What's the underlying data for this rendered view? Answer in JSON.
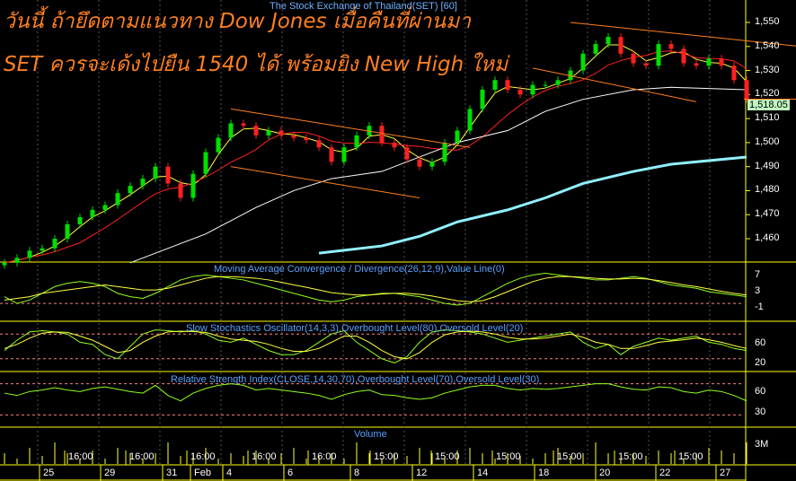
{
  "headline": {
    "line1": "วันนี้ ถ้ายึดตามแนวทาง Dow Jones เมื่อคืนที่ผ่านมา",
    "line2": "SET ควรจะเด้งไปยืน 1540 ได้ พร้อมยิง New High ใหม่"
  },
  "source_label": "The Stock Exchange of Thailand(SET) [60]",
  "colors": {
    "up": "#00e000",
    "down": "#ff2020",
    "ma_short": "#ffff40",
    "ma_mid": "#ff2020",
    "ma_long": "#ffffff",
    "ma_longest": "#90f0ff",
    "trendline": "#ff7f1f",
    "axis": "#ffff00",
    "label": "#5aa0ff"
  },
  "chart_data": [
    {
      "type": "candlestick",
      "title": "The Stock Exchange of Thailand(SET) [60]",
      "yticks": [
        "1,550",
        "1,540",
        "1,530",
        "1,520",
        "1,510",
        "1,500",
        "1,490",
        "1,480",
        "1,470",
        "1,460"
      ],
      "ylim": [
        1448,
        1556
      ],
      "last_price": "1,518.05",
      "close": [
        1450,
        1452,
        1455,
        1456,
        1460,
        1466,
        1469,
        1472,
        1474,
        1479,
        1482,
        1485,
        1490,
        1483,
        1477,
        1487,
        1496,
        1502,
        1508,
        1507,
        1503,
        1505,
        1503,
        1502,
        1501,
        1498,
        1492,
        1498,
        1503,
        1507,
        1500,
        1498,
        1493,
        1490,
        1492,
        1500,
        1505,
        1514,
        1522,
        1526,
        1522,
        1520,
        1524,
        1524,
        1526,
        1530,
        1537,
        1541,
        1544,
        1537,
        1533,
        1532,
        1541,
        1539,
        1533,
        1532,
        1535,
        1532,
        1526,
        1518.05
      ],
      "ma_long": [
        [
          10,
          1450
        ],
        [
          16,
          1462
        ],
        [
          20,
          1473
        ],
        [
          23,
          1480
        ],
        [
          26,
          1485
        ],
        [
          30,
          1488
        ],
        [
          33,
          1494
        ],
        [
          36,
          1500
        ],
        [
          40,
          1505
        ],
        [
          43,
          1513
        ],
        [
          46,
          1518
        ],
        [
          50,
          1522
        ],
        [
          53,
          1523
        ],
        [
          59,
          1522
        ]
      ],
      "ma_longest": [
        [
          25,
          1454
        ],
        [
          30,
          1457
        ],
        [
          33,
          1461
        ],
        [
          36,
          1467
        ],
        [
          40,
          1472
        ],
        [
          43,
          1477
        ],
        [
          46,
          1483
        ],
        [
          50,
          1488
        ],
        [
          53,
          1491
        ],
        [
          59,
          1494
        ]
      ],
      "trendlines": [
        [
          [
            18,
            1514
          ],
          [
            37,
            1498
          ]
        ],
        [
          [
            18,
            1490
          ],
          [
            33,
            1477
          ]
        ],
        [
          [
            42,
            1531
          ],
          [
            55,
            1517
          ]
        ],
        [
          [
            45,
            1550
          ],
          [
            59,
            1540
          ]
        ]
      ]
    },
    {
      "type": "line",
      "title": "Moving Average Convergence / Divergence(26,12,9),Value Line(0)",
      "yticks": [
        "7",
        "3",
        "-1"
      ],
      "ylim": [
        -4,
        11
      ],
      "series": [
        [
          2,
          0,
          1,
          3,
          5,
          6,
          6.5,
          6,
          5,
          3,
          2,
          1.5,
          3,
          5,
          7,
          8,
          8.5,
          8,
          7.5,
          7,
          6,
          5,
          4,
          3,
          2,
          1,
          0.5,
          1,
          2,
          2.5,
          3,
          3,
          2.5,
          2,
          1,
          0,
          -0.5,
          0,
          2,
          4,
          6,
          7.5,
          8.5,
          9,
          8.5,
          8,
          7.5,
          7,
          7,
          7.5,
          8,
          7.5,
          6.5,
          5.5,
          5,
          4.5,
          3.5,
          3,
          2.5,
          2
        ],
        [
          1,
          1.5,
          2,
          3,
          3.5,
          4,
          4.5,
          5,
          5.5,
          5,
          4.5,
          4,
          4,
          4.5,
          5.5,
          6.5,
          7.5,
          8,
          8,
          7.8,
          7.5,
          7,
          6.3,
          5.5,
          4.8,
          4,
          3.2,
          2.8,
          2.5,
          2.5,
          2.8,
          3,
          3,
          2.7,
          2.2,
          1.5,
          0.8,
          0.5,
          0.8,
          2,
          3.5,
          5,
          6.5,
          7.5,
          8,
          8,
          7.8,
          7.5,
          7.3,
          7.3,
          7.5,
          7.3,
          6.8,
          6.2,
          5.5,
          5,
          4.3,
          3.6,
          3,
          2.5
        ]
      ]
    },
    {
      "type": "line",
      "title": "Slow Stochastics Oscillator(14,3,3),Overbought Level(80),Oversold Level(20)",
      "yticks": [
        "60",
        "20"
      ],
      "ylim": [
        0,
        100
      ],
      "levels": [
        80,
        20
      ],
      "series": [
        [
          40,
          65,
          85,
          88,
          85,
          80,
          60,
          55,
          30,
          20,
          50,
          80,
          90,
          88,
          85,
          88,
          80,
          65,
          60,
          70,
          55,
          40,
          30,
          30,
          40,
          60,
          80,
          88,
          60,
          40,
          20,
          10,
          25,
          60,
          85,
          90,
          88,
          85,
          80,
          70,
          60,
          65,
          70,
          75,
          80,
          85,
          60,
          45,
          55,
          30,
          50,
          60,
          70,
          65,
          70,
          75,
          60,
          55,
          45,
          40
        ],
        [
          45,
          55,
          70,
          82,
          85,
          84,
          75,
          65,
          50,
          35,
          40,
          60,
          75,
          85,
          87,
          86,
          84,
          75,
          68,
          65,
          62,
          55,
          45,
          38,
          38,
          45,
          60,
          75,
          75,
          60,
          40,
          25,
          20,
          35,
          60,
          78,
          85,
          87,
          85,
          80,
          72,
          68,
          68,
          70,
          75,
          80,
          72,
          60,
          55,
          45,
          45,
          52,
          60,
          63,
          66,
          70,
          66,
          60,
          52,
          45
        ]
      ]
    },
    {
      "type": "line",
      "title": "Relative Strength Index(CLOSE,14,30,70),Overbought Level(70),Oversold Level(30)",
      "yticks": [
        "60",
        "30"
      ],
      "ylim": [
        20,
        80
      ],
      "levels": [
        70,
        30
      ],
      "series": [
        [
          58,
          55,
          60,
          62,
          65,
          62,
          60,
          64,
          66,
          63,
          60,
          58,
          68,
          55,
          48,
          58,
          64,
          68,
          70,
          68,
          62,
          64,
          62,
          60,
          58,
          55,
          50,
          56,
          60,
          62,
          56,
          55,
          52,
          50,
          52,
          58,
          62,
          66,
          68,
          68,
          64,
          62,
          64,
          63,
          64,
          66,
          68,
          70,
          70,
          66,
          63,
          62,
          66,
          65,
          60,
          58,
          62,
          60,
          55,
          48
        ]
      ]
    },
    {
      "type": "bar",
      "title": "Volume",
      "yticks": [
        "3M"
      ],
      "ylim": [
        0,
        6
      ],
      "values": [
        2,
        1,
        3,
        1.5,
        4,
        2,
        1,
        2.5,
        1,
        3,
        2,
        1,
        2,
        4,
        1.5,
        2,
        3,
        1,
        2,
        1.5,
        2.5,
        1,
        2,
        3,
        1,
        1.5,
        2,
        1,
        4,
        2,
        1,
        2,
        1.5,
        3,
        2,
        1,
        2.5,
        3,
        2,
        1,
        2,
        1.5,
        1,
        2,
        3,
        1.5,
        2,
        4,
        2,
        1,
        2,
        1.5,
        2.5,
        2,
        1,
        2,
        3,
        2.5,
        2,
        4
      ]
    }
  ],
  "x_axis": {
    "times": [
      "16:00",
      "16:00",
      "16:00",
      "16:00",
      "16:00",
      "15:00",
      "15:00",
      "15:00",
      "15:00",
      "15:00",
      "15:00"
    ],
    "dates": [
      "25",
      "29",
      "31",
      "Feb",
      "4",
      "6",
      "8",
      "12",
      "14",
      "18",
      "20",
      "22",
      "27"
    ]
  }
}
